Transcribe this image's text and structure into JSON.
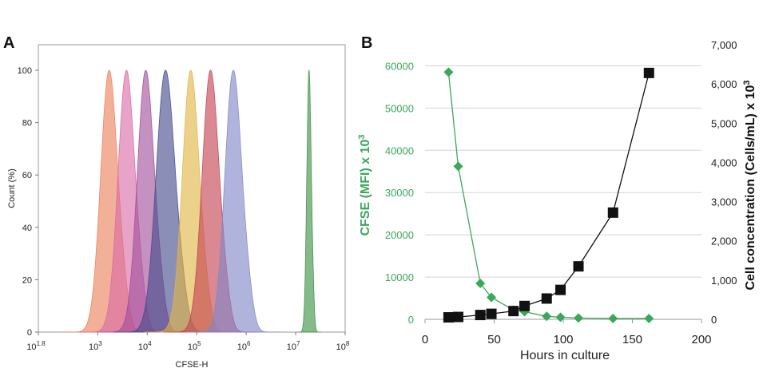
{
  "figure": {
    "panel_a_letter": "A",
    "panel_b_letter": "B"
  },
  "colors": {
    "green": "#3aa85a",
    "black": "#111111",
    "grid": "#d4d4d4"
  },
  "chart_data": [
    {
      "type": "area",
      "panel": "A",
      "xlabel": "CFSE-H",
      "ylabel": "Count  (%)",
      "x_scale": "log",
      "xlim_log10": [
        1.8,
        8
      ],
      "ylim": [
        0,
        100
      ],
      "x_ticks": [
        {
          "base": "10",
          "exp": "1.8",
          "log": 1.8
        },
        {
          "base": "10",
          "exp": "3",
          "log": 3
        },
        {
          "base": "10",
          "exp": "4",
          "log": 4
        },
        {
          "base": "10",
          "exp": "5",
          "log": 5
        },
        {
          "base": "10",
          "exp": "6",
          "log": 6
        },
        {
          "base": "10",
          "exp": "7",
          "log": 7
        },
        {
          "base": "10",
          "exp": "8",
          "log": 8
        }
      ],
      "y_ticks": [
        "0",
        "20",
        "40",
        "60",
        "80",
        "100"
      ],
      "series": [
        {
          "color": "#ec7f5b",
          "peak_log10": 3.23,
          "width": 0.17,
          "peak": 100
        },
        {
          "color": "#d86aa6",
          "peak_log10": 3.58,
          "width": 0.17,
          "peak": 100
        },
        {
          "color": "#a04e9a",
          "peak_log10": 3.97,
          "width": 0.17,
          "peak": 100
        },
        {
          "color": "#434a8a",
          "peak_log10": 4.37,
          "width": 0.19,
          "peak": 100
        },
        {
          "color": "#e0b544",
          "peak_log10": 4.88,
          "width": 0.17,
          "peak": 100
        },
        {
          "color": "#c44050",
          "peak_log10": 5.28,
          "width": 0.17,
          "peak": 100
        },
        {
          "color": "#7f86c8",
          "peak_log10": 5.74,
          "width": 0.17,
          "peak": 100
        },
        {
          "color": "#3e8f43",
          "peak_log10": 7.27,
          "width": 0.045,
          "peak": 100
        }
      ]
    },
    {
      "type": "line",
      "panel": "B",
      "xlabel": "Hours in culture",
      "ylabel_left": "CFSE (MFI) x 10",
      "ylabel_left_sup": "3",
      "ylabel_right": "Cell concentration (Cells/mL) x 10",
      "ylabel_right_sup": "3",
      "xlim": [
        0,
        200
      ],
      "ylim_left": [
        0,
        65000
      ],
      "ylim_right": [
        0,
        7000
      ],
      "x_ticks": [
        "0",
        "50",
        "100",
        "150",
        "200"
      ],
      "y_left_ticks": [
        "0",
        "10000",
        "20000",
        "30000",
        "40000",
        "50000",
        "60000"
      ],
      "y_right_ticks": [
        "0",
        "1,000",
        "2,000",
        "3,000",
        "4,000",
        "5,000",
        "6,000",
        "7,000"
      ],
      "grid": true,
      "series": [
        {
          "axis": "left",
          "marker": "diamond",
          "color": "#3aa85a",
          "x": [
            17,
            24,
            40,
            48,
            64,
            72,
            88,
            98,
            111,
            136,
            162
          ],
          "y": [
            58500,
            36200,
            8500,
            5200,
            2200,
            1800,
            700,
            500,
            300,
            200,
            200
          ]
        },
        {
          "axis": "right",
          "marker": "square",
          "color": "#111111",
          "x": [
            17,
            24,
            40,
            48,
            64,
            72,
            88,
            98,
            111,
            136,
            162
          ],
          "y": [
            50,
            60,
            110,
            140,
            210,
            340,
            530,
            750,
            1350,
            2720,
            6280
          ]
        }
      ]
    }
  ]
}
